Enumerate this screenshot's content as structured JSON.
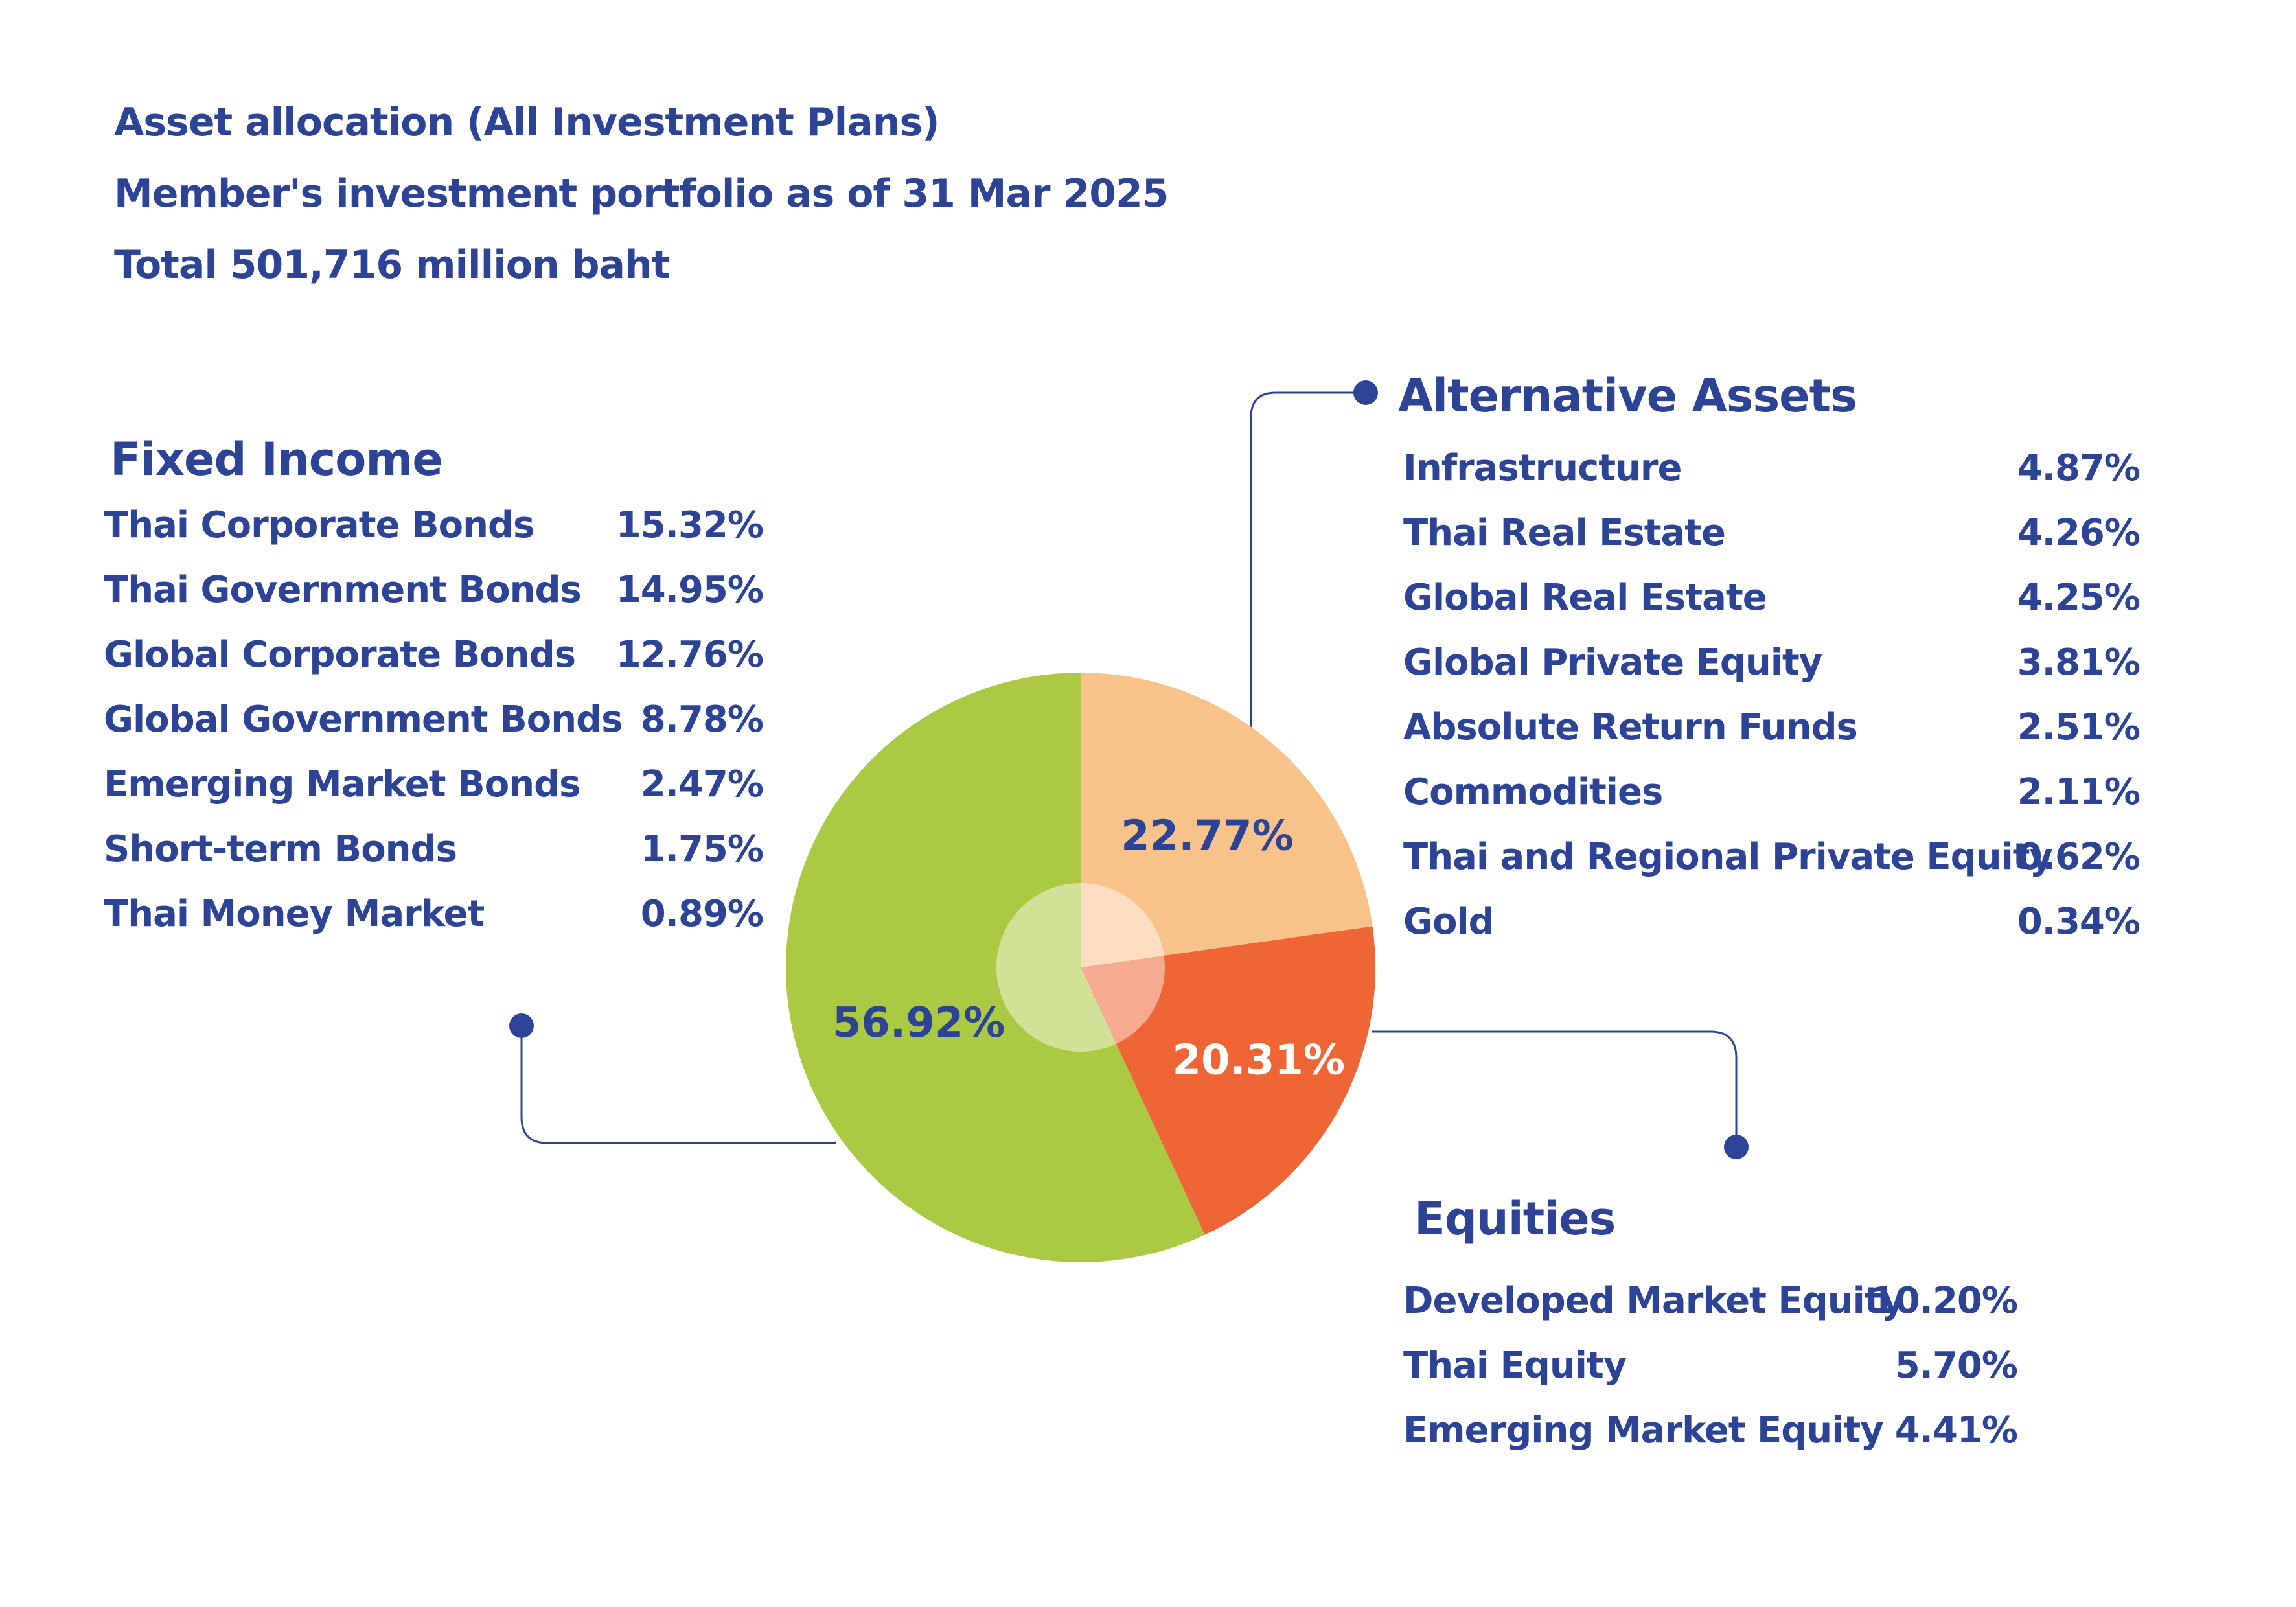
{
  "header": {
    "line1": "Asset allocation (All Investment Plans)",
    "line2": "Member's investment portfolio as of  31 Mar 2025",
    "line3": "Total 501,716 million baht"
  },
  "colors": {
    "text": "#2d4496",
    "fixed_income": "#acc944",
    "alternative_assets": "#f8c38a",
    "equities": "#ee6536",
    "connector": "#2d4496"
  },
  "chart_data": {
    "type": "pie",
    "slices": [
      {
        "label": "Alternative Assets",
        "value": 22.77,
        "display": "22.77%",
        "color": "#f8c38a",
        "label_color": "#2d4496"
      },
      {
        "label": "Equities",
        "value": 20.31,
        "display": "20.31%",
        "color": "#ee6536",
        "label_color": "#ffffff"
      },
      {
        "label": "Fixed Income",
        "value": 56.92,
        "display": "56.92%",
        "color": "#acc944",
        "label_color": "#2d4496"
      }
    ]
  },
  "fixed_income": {
    "title": "Fixed Income",
    "items": [
      {
        "name": "Thai Corporate Bonds",
        "value": "15.32%"
      },
      {
        "name": "Thai Government Bonds",
        "value": "14.95%"
      },
      {
        "name": "Global Corporate Bonds",
        "value": "12.76%"
      },
      {
        "name": "Global Government Bonds",
        "value": "8.78%"
      },
      {
        "name": "Emerging Market Bonds",
        "value": "2.47%"
      },
      {
        "name": "Short-term Bonds",
        "value": "1.75%"
      },
      {
        "name": "Thai Money Market",
        "value": "0.89%"
      }
    ]
  },
  "alternative_assets": {
    "title": "Alternative Assets",
    "items": [
      {
        "name": "Infrastructure",
        "value": "4.87%"
      },
      {
        "name": "Thai Real Estate",
        "value": "4.26%"
      },
      {
        "name": "Global Real Estate",
        "value": "4.25%"
      },
      {
        "name": "Global Private Equity",
        "value": "3.81%"
      },
      {
        "name": "Absolute Return Funds",
        "value": "2.51%"
      },
      {
        "name": "Commodities",
        "value": "2.11%"
      },
      {
        "name": "Thai and Regional Private Equity",
        "value": "0.62%"
      },
      {
        "name": "Gold",
        "value": "0.34%"
      }
    ]
  },
  "equities": {
    "title": "Equities",
    "items": [
      {
        "name": "Developed Market Equity",
        "value": "10.20%"
      },
      {
        "name": "Thai Equity",
        "value": "5.70%"
      },
      {
        "name": "Emerging Market Equity",
        "value": "4.41%"
      }
    ]
  }
}
